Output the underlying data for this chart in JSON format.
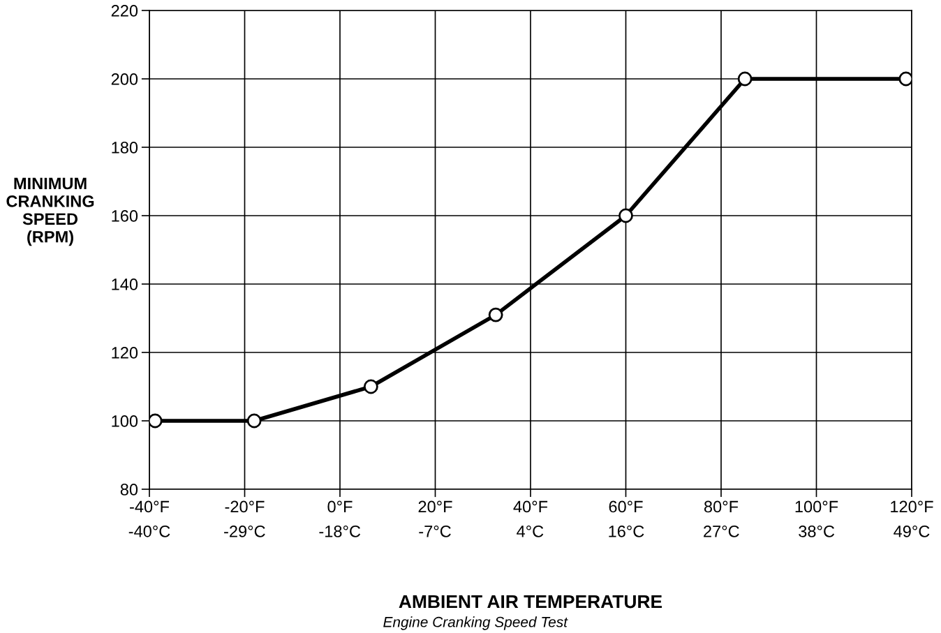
{
  "chart_data": {
    "type": "line",
    "xlabel": "AMBIENT AIR TEMPERATURE",
    "ylabel": "MINIMUM\nCRANKING\nSPEED\n(RPM)",
    "annotations": [
      "Engine Cranking Speed Test"
    ],
    "x": [
      -38.8,
      -18,
      6.5,
      32.7,
      60,
      85,
      118.8
    ],
    "series": [
      {
        "color": "#000000",
        "values": [
          100,
          100,
          110,
          131,
          160,
          200,
          200
        ]
      }
    ],
    "xlim": [
      -40,
      120
    ],
    "ylim": [
      80,
      220
    ],
    "xticks": [
      {
        "value": -40,
        "label": "-40°F"
      },
      {
        "value": -20,
        "label": "-20°F"
      },
      {
        "value": 0,
        "label": "0°F"
      },
      {
        "value": 20,
        "label": "20°F"
      },
      {
        "value": 40,
        "label": "40°F"
      },
      {
        "value": 60,
        "label": "60°F"
      },
      {
        "value": 80,
        "label": "80°F"
      },
      {
        "value": 100,
        "label": "100°F"
      },
      {
        "value": 120,
        "label": "120°F"
      }
    ],
    "x2lim": [
      -40,
      48.9
    ],
    "x2ticks": [
      {
        "value": -40,
        "label": "-40°C"
      },
      {
        "value": -28.9,
        "label": "-29°C"
      },
      {
        "value": -17.8,
        "label": "-18°C"
      },
      {
        "value": -6.7,
        "label": "-7°C"
      },
      {
        "value": 4.4,
        "label": "4°C"
      },
      {
        "value": 15.6,
        "label": "16°C"
      },
      {
        "value": 26.7,
        "label": "27°C"
      },
      {
        "value": 37.8,
        "label": "38°C"
      },
      {
        "value": 48.9,
        "label": "49°C"
      }
    ],
    "yticks": [
      80,
      100,
      120,
      140,
      160,
      180,
      200,
      220
    ],
    "grid": true,
    "marker": "circle",
    "line_style": "solid",
    "legend": false
  }
}
